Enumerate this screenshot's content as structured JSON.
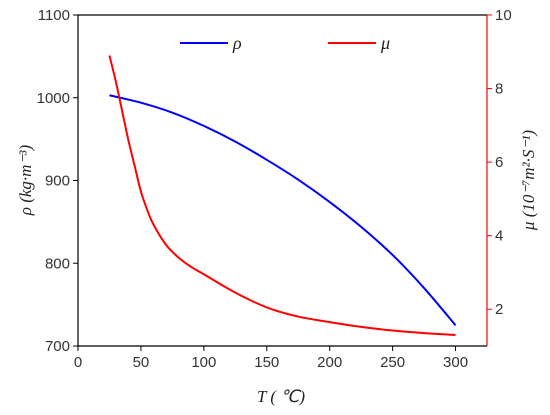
{
  "chart_data": {
    "type": "line",
    "xlabel": "T ( ℃)",
    "xlim": [
      0,
      325
    ],
    "xticks": [
      "0",
      "50",
      "100",
      "150",
      "200",
      "250",
      "300"
    ],
    "left_axis": {
      "label": "ρ (kg·m⁻³)",
      "lim": [
        700,
        1100
      ],
      "ticks": [
        "700",
        "800",
        "900",
        "1000",
        "1100"
      ],
      "color": "#000000"
    },
    "right_axis": {
      "label": "μ (10⁻⁷m²·S⁻¹)",
      "lim": [
        1,
        10
      ],
      "ticks": [
        "2",
        "4",
        "6",
        "8",
        "10"
      ],
      "color": "#ff0000"
    },
    "legend_position": "top",
    "grid": false,
    "series": [
      {
        "name": "ρ",
        "color": "#0000ff",
        "axis": "left",
        "x": [
          25,
          50,
          75,
          100,
          125,
          150,
          175,
          200,
          225,
          250,
          275,
          300
        ],
        "y": [
          1003,
          994,
          982,
          966,
          947,
          925,
          901,
          874,
          844,
          810,
          770,
          725
        ]
      },
      {
        "name": "μ",
        "color": "#ff0000",
        "axis": "right",
        "x": [
          25,
          30,
          35,
          40,
          45,
          50,
          55,
          60,
          70,
          80,
          90,
          100,
          125,
          150,
          175,
          200,
          225,
          250,
          275,
          300
        ],
        "y": [
          8.9,
          8.2,
          7.4,
          6.6,
          5.9,
          5.2,
          4.7,
          4.3,
          3.75,
          3.4,
          3.15,
          2.95,
          2.45,
          2.05,
          1.8,
          1.65,
          1.52,
          1.42,
          1.35,
          1.3
        ]
      }
    ]
  }
}
